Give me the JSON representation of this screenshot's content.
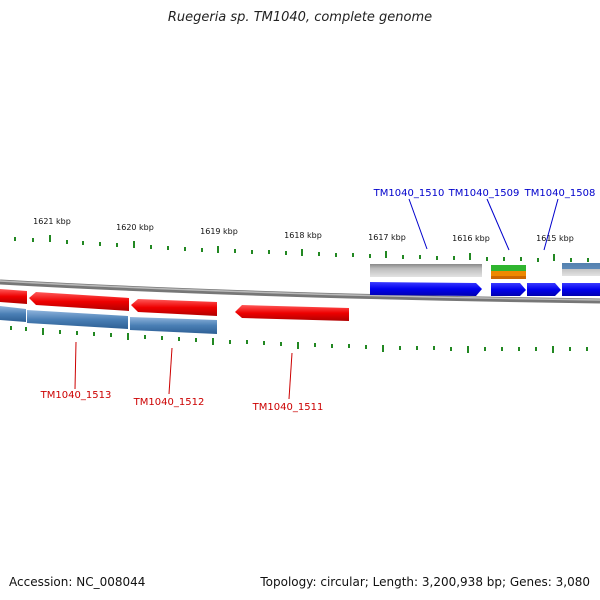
{
  "title": "Ruegeria sp. TM1040, complete genome",
  "footer": {
    "accession": "Accession: NC_008044",
    "summary": "Topology: circular; Length: 3,200,938 bp; Genes: 3,080"
  },
  "colors": {
    "forward_gene": "#0000ee",
    "reverse_gene": "#ee0000",
    "cds_track": "#4a7fb5",
    "rna_track": "#aaaaaa",
    "tick": "#228822",
    "backbone": "#888888",
    "forward_label": "#0000cc",
    "reverse_label": "#cc0000"
  },
  "scale": {
    "unit": "kbp",
    "ticks": [
      {
        "label": "1621 kbp",
        "value": 1621
      },
      {
        "label": "1620 kbp",
        "value": 1620
      },
      {
        "label": "1619 kbp",
        "value": 1619
      },
      {
        "label": "1618 kbp",
        "value": 1618
      },
      {
        "label": "1617 kbp",
        "value": 1617
      },
      {
        "label": "1616 kbp",
        "value": 1616
      },
      {
        "label": "1615 kbp",
        "value": 1615
      }
    ]
  },
  "gene_labels": {
    "forward": [
      "TM1040_1510",
      "TM1040_1509",
      "TM1040_1508"
    ],
    "reverse": [
      "TM1040_1513",
      "TM1040_1512",
      "TM1040_1511"
    ]
  }
}
